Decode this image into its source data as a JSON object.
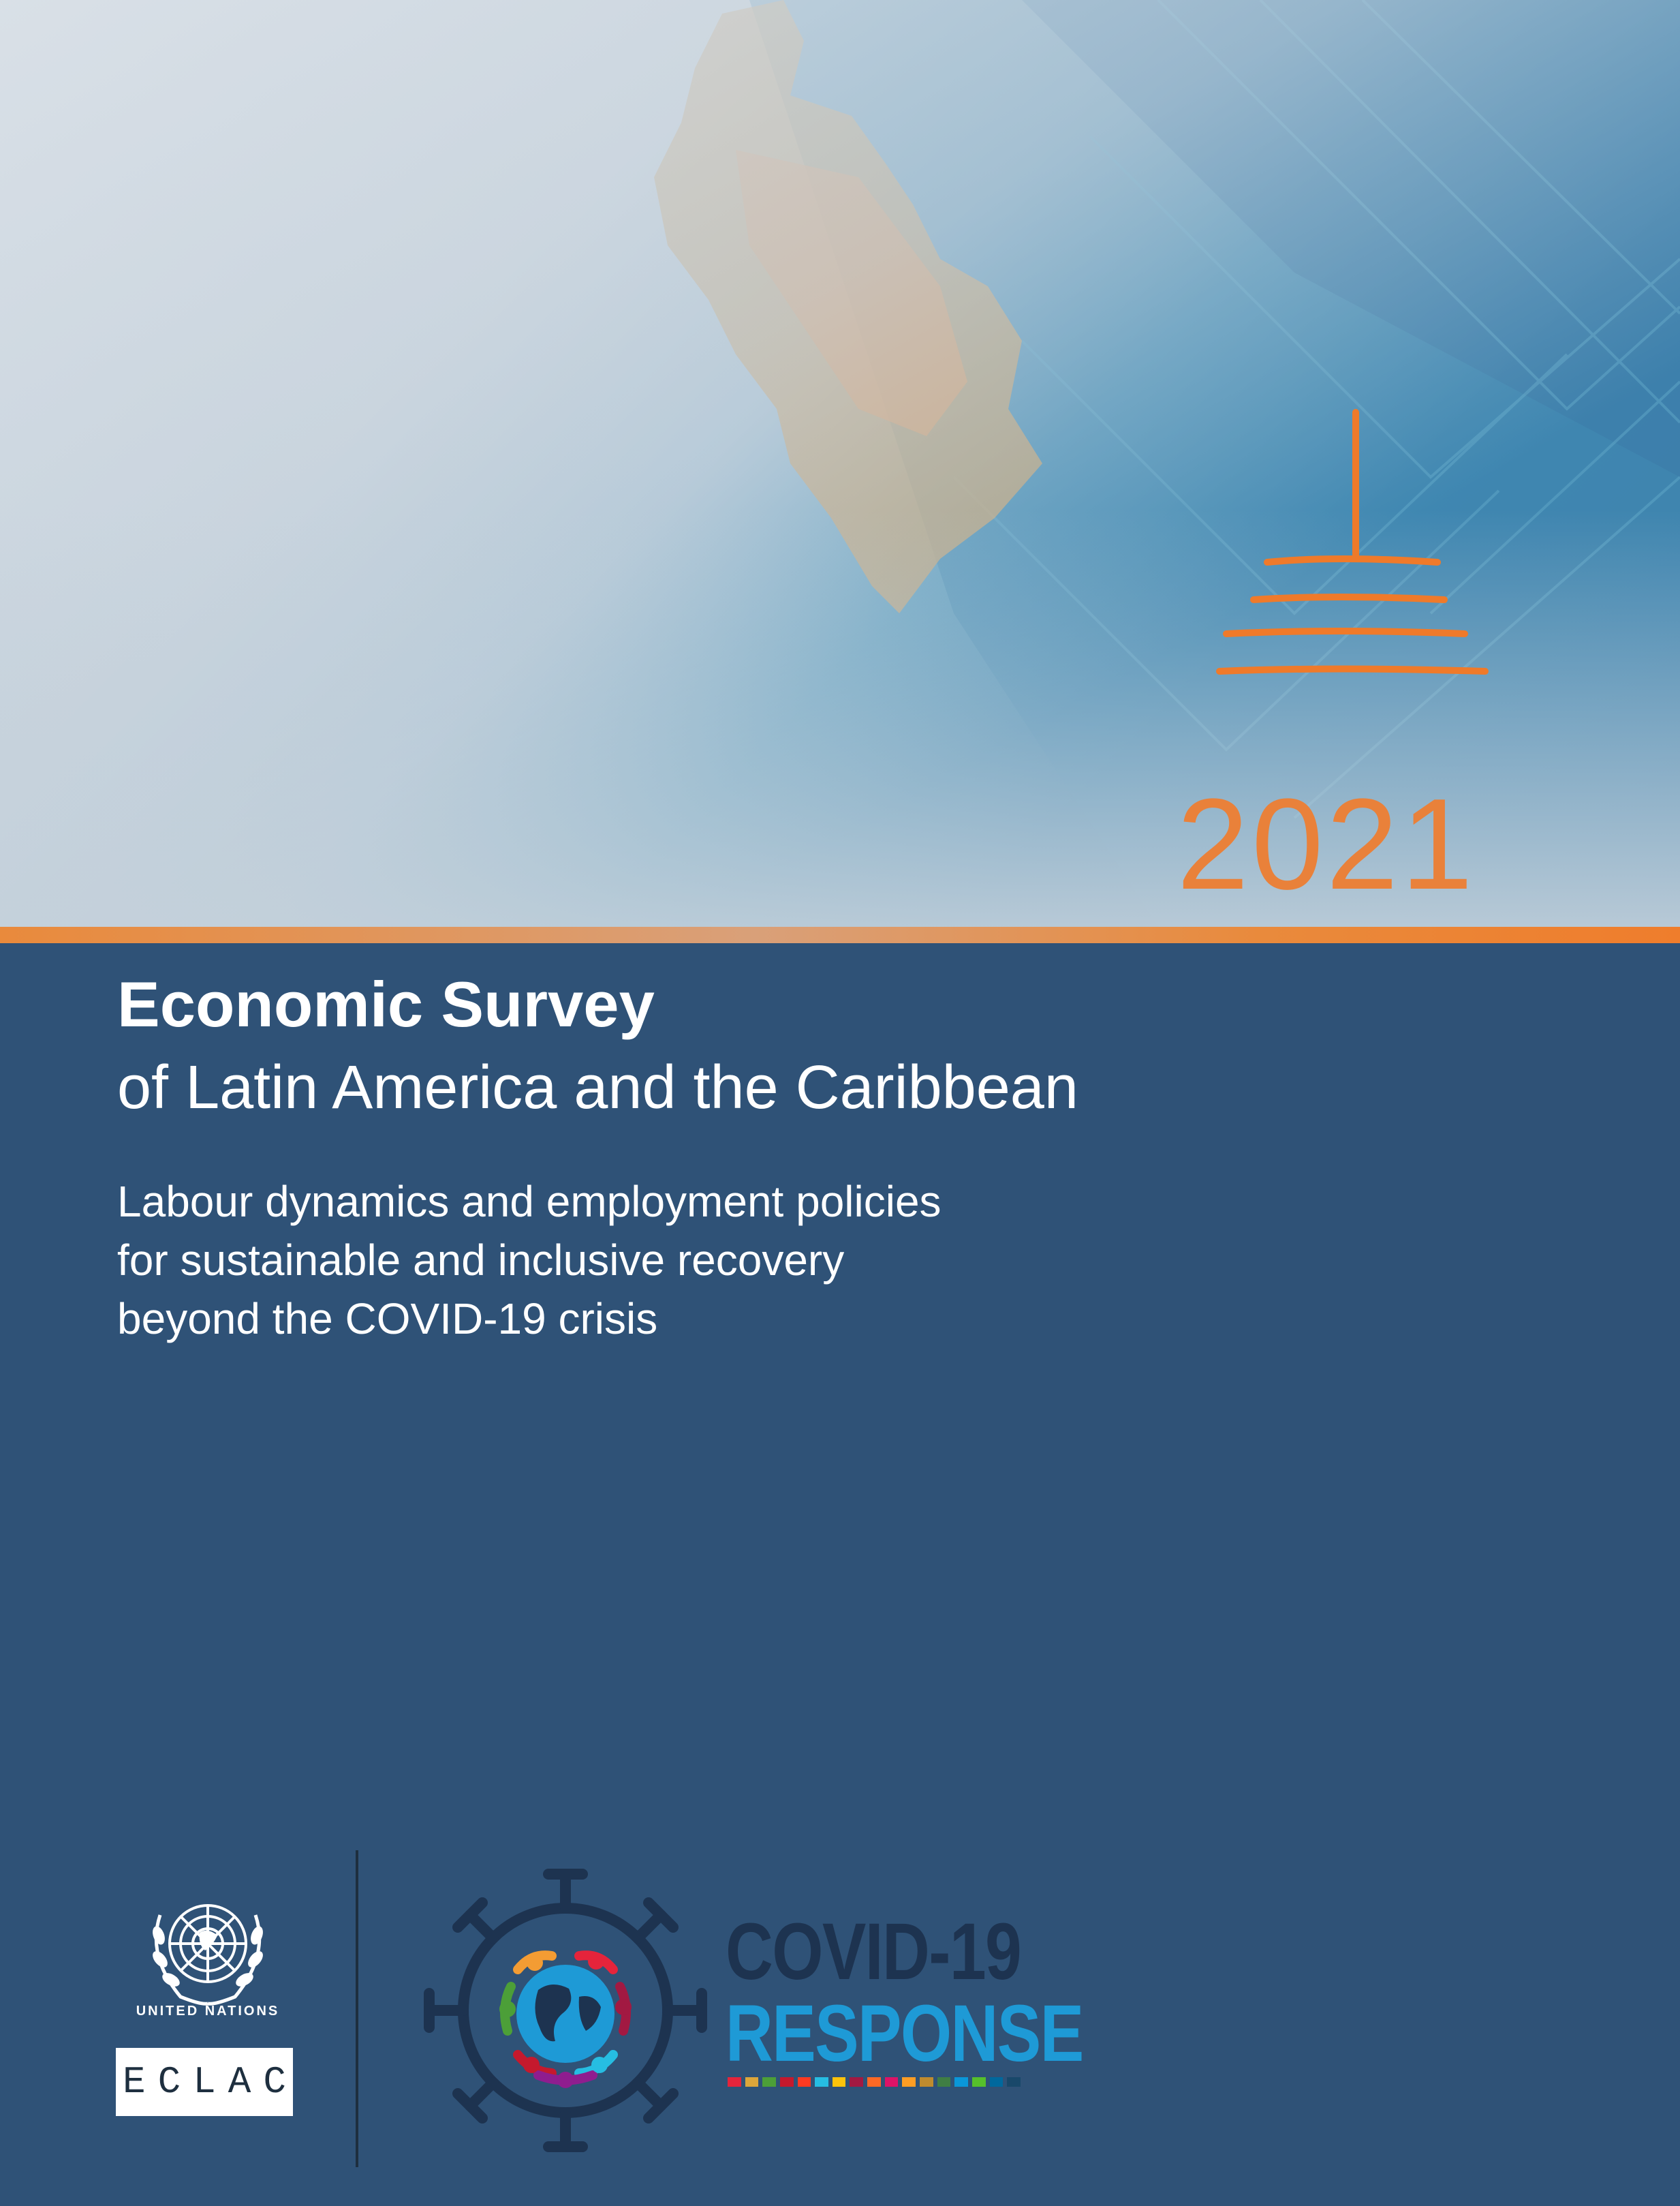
{
  "cover": {
    "year": "2021",
    "title_line1": "Economic Survey",
    "title_line2": "of Latin America and the Caribbean",
    "subtitle_lines": [
      "Labour dynamics and employment policies",
      "for sustainable and inclusive recovery",
      "beyond the COVID-19 crisis"
    ]
  },
  "logos": {
    "un_label": "UNITED NATIONS",
    "eclac_label": "ECLAC",
    "covid_line1": "COVID-19",
    "covid_line2": "RESPONSE"
  },
  "colors": {
    "background": "#2f5277",
    "accent_orange": "#e9813a",
    "response_blue": "#1e9ad6",
    "covid_navy": "#1d3350"
  },
  "icons": [
    "un-emblem-icon",
    "covid-globe-icon",
    "orange-glyph-icon"
  ]
}
